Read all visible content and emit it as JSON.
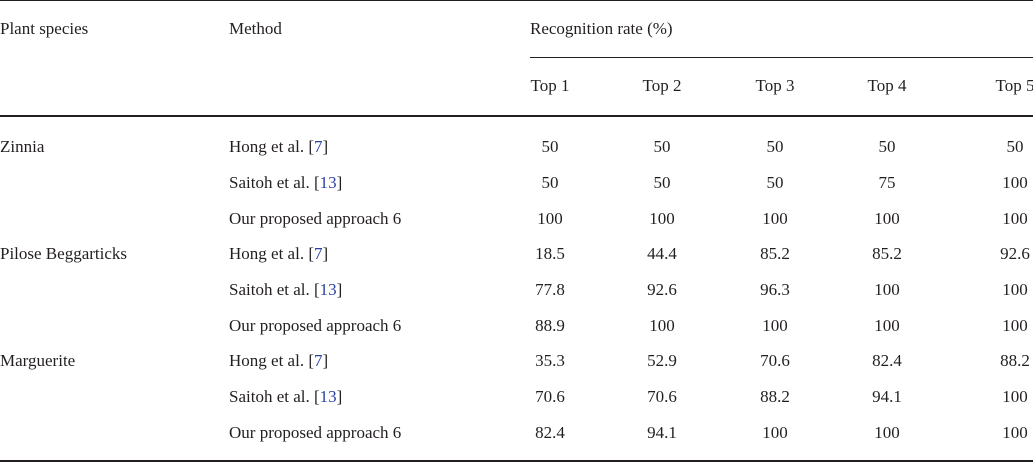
{
  "table": {
    "headers": {
      "species": "Plant species",
      "method": "Method",
      "recognition": "Recognition rate (%)",
      "tops": [
        "Top 1",
        "Top 2",
        "Top 3",
        "Top 4",
        "Top 5"
      ]
    },
    "rows": [
      {
        "species": "Zinnia",
        "method": "Hong et al. [",
        "ref": "7",
        "values": [
          "50",
          "50",
          "50",
          "50",
          "50"
        ]
      },
      {
        "species": "",
        "method": "Saitoh et al. [",
        "ref": "13",
        "values": [
          "50",
          "50",
          "50",
          "75",
          "100"
        ]
      },
      {
        "species": "",
        "method": "Our proposed approach 6",
        "ref": "",
        "values": [
          "100",
          "100",
          "100",
          "100",
          "100"
        ]
      },
      {
        "species": "Pilose Beggarticks",
        "method": "Hong et al. [",
        "ref": "7",
        "values": [
          "18.5",
          "44.4",
          "85.2",
          "85.2",
          "92.6"
        ]
      },
      {
        "species": "",
        "method": "Saitoh et al. [",
        "ref": "13",
        "values": [
          "77.8",
          "92.6",
          "96.3",
          "100",
          "100"
        ]
      },
      {
        "species": "",
        "method": "Our proposed approach 6",
        "ref": "",
        "values": [
          "88.9",
          "100",
          "100",
          "100",
          "100"
        ]
      },
      {
        "species": "Marguerite",
        "method": "Hong et al. [",
        "ref": "7",
        "values": [
          "35.3",
          "52.9",
          "70.6",
          "82.4",
          "88.2"
        ]
      },
      {
        "species": "",
        "method": "Saitoh et al. [",
        "ref": "13",
        "values": [
          "70.6",
          "70.6",
          "88.2",
          "94.1",
          "100"
        ]
      },
      {
        "species": "",
        "method": "Our proposed approach 6",
        "ref": "",
        "values": [
          "82.4",
          "94.1",
          "100",
          "100",
          "100"
        ]
      }
    ]
  }
}
